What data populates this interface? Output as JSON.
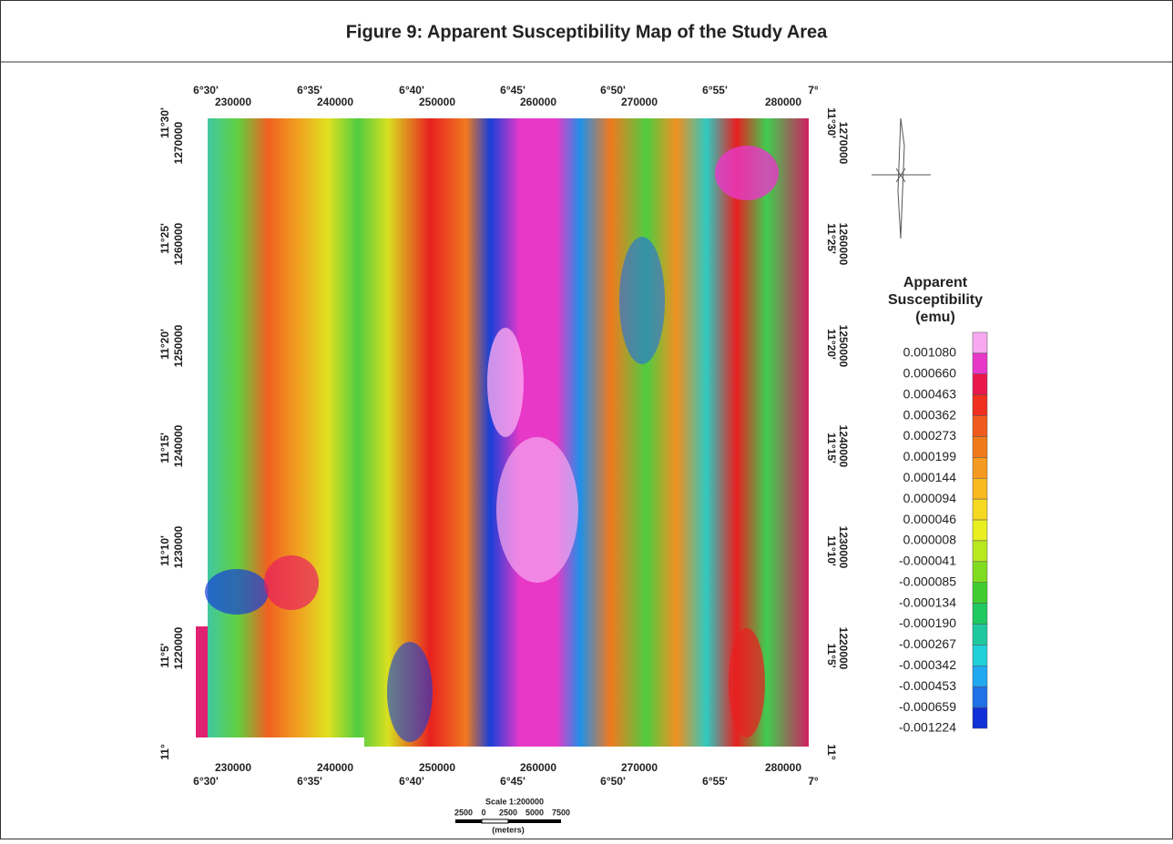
{
  "title": "Figure 9: Apparent Susceptibility Map of the Study Area",
  "map": {
    "top_degrees": [
      "6°30'",
      "6°35'",
      "6°40'",
      "6°45'",
      "6°50'",
      "6°55'",
      "7°"
    ],
    "top_utm": [
      "230000",
      "240000",
      "250000",
      "260000",
      "270000",
      "280000"
    ],
    "bottom_utm": [
      "230000",
      "240000",
      "250000",
      "260000",
      "270000",
      "280000"
    ],
    "bottom_degrees": [
      "6°30'",
      "6°35'",
      "6°40'",
      "6°45'",
      "6°50'",
      "6°55'",
      "7°"
    ],
    "left_degrees": [
      "11°30'",
      "11°25'",
      "11°20'",
      "11°15'",
      "11°10'",
      "11°5'",
      "11°"
    ],
    "left_utm": [
      "1270000",
      "1260000",
      "1250000",
      "1240000",
      "1230000",
      "1220000"
    ],
    "right_degrees": [
      "11°30'",
      "11°25'",
      "11°20'",
      "11°15'",
      "11°10'",
      "11°5'",
      "11°"
    ],
    "right_utm": [
      "1270000",
      "1260000",
      "1250000",
      "1240000",
      "1230000",
      "1220000"
    ]
  },
  "legend": {
    "title": [
      "Apparent",
      "Susceptibility",
      "(emu)"
    ],
    "labels": [
      "0.001080",
      "0.000660",
      "0.000463",
      "0.000362",
      "0.000273",
      "0.000199",
      "0.000144",
      "0.000094",
      "0.000046",
      "0.000008",
      "-0.000041",
      "-0.000085",
      "-0.000134",
      "-0.000190",
      "-0.000267",
      "-0.000342",
      "-0.000453",
      "-0.000659",
      "-0.001224"
    ],
    "colors": [
      "#f7a8f0",
      "#e838c8",
      "#e8184a",
      "#f03020",
      "#f05a1c",
      "#f07a1a",
      "#f59a20",
      "#f7b820",
      "#f5d820",
      "#e8ee20",
      "#b8e820",
      "#80dc20",
      "#40cc30",
      "#20c860",
      "#20c8a0",
      "#20d0d8",
      "#20a8f0",
      "#2070e8",
      "#1030d8"
    ]
  },
  "scale": {
    "title": "Scale 1:200000",
    "ticks": [
      "2500",
      "0",
      "2500",
      "5000",
      "7500"
    ],
    "unit": "(meters)"
  }
}
